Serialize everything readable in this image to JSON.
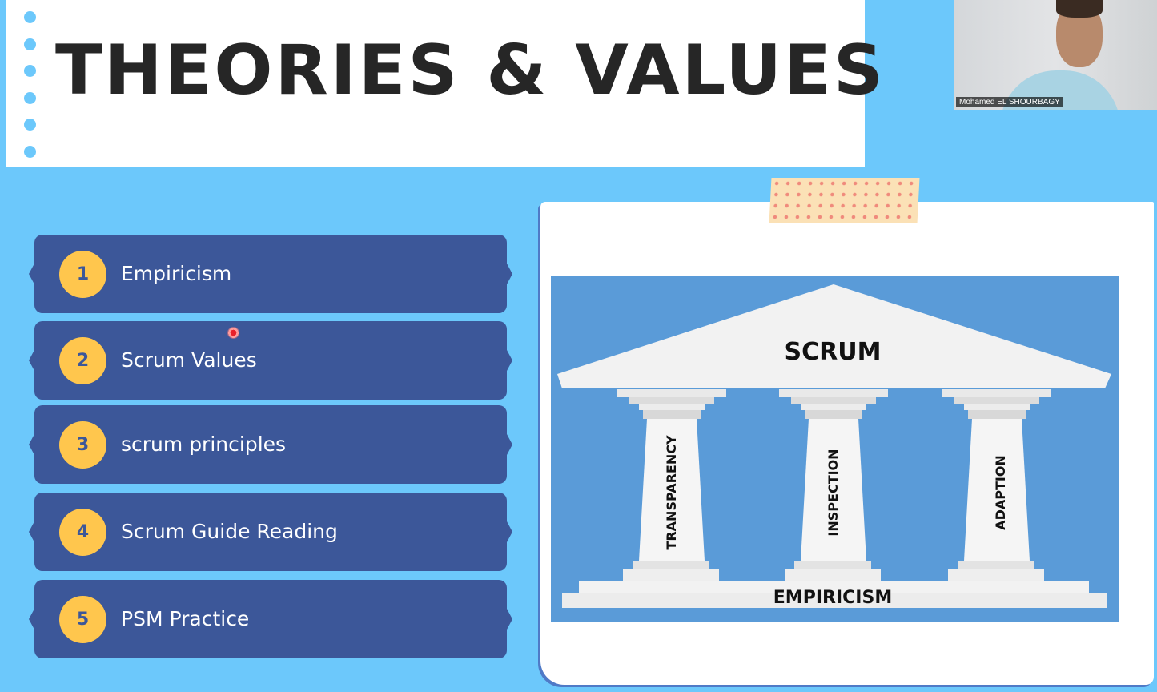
{
  "slide": {
    "title": "THEORIES & VALUES",
    "colors": {
      "background": "#6cc8fb",
      "item_fill": "#3c5799",
      "number_badge": "#ffc64d",
      "diagram_bg": "#5a9bd8"
    }
  },
  "webcam": {
    "participant_name": "Mohamed EL SHOURBAGY"
  },
  "agenda": {
    "items": [
      {
        "number": "1",
        "label": "Empiricism"
      },
      {
        "number": "2",
        "label": "Scrum Values"
      },
      {
        "number": "3",
        "label": "scrum principles"
      },
      {
        "number": "4",
        "label": "Scrum Guide Reading"
      },
      {
        "number": "5",
        "label": "PSM Practice"
      }
    ]
  },
  "diagram": {
    "roof_label": "SCRUM",
    "pillars": [
      "TRANSPARENCY",
      "INSPECTION",
      "ADAPTION"
    ],
    "base_label": "EMPIRICISM"
  }
}
